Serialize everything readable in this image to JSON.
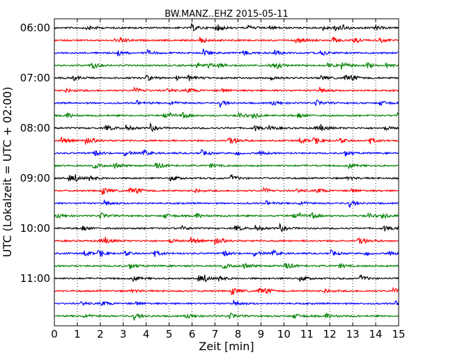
{
  "chart_data": {
    "type": "line",
    "title": "BW.MANZ..EHZ 2015-05-11",
    "xlabel": "Zeit  [min]",
    "ylabel": "UTC (Lokalzeit = UTC + 02:00)",
    "xlim": [
      0,
      15
    ],
    "x_ticks": [
      0,
      1,
      2,
      3,
      4,
      5,
      6,
      7,
      8,
      9,
      10,
      11,
      12,
      13,
      14,
      15
    ],
    "x_tick_labels": [
      "0",
      "1",
      "2",
      "3",
      "4",
      "5",
      "6",
      "7",
      "8",
      "9",
      "10",
      "11",
      "12",
      "13",
      "14",
      "15"
    ],
    "grid": "x-dotted",
    "trace_interval_minutes": 15,
    "y_tick_labels": [
      "06:00",
      "07:00",
      "08:00",
      "09:00",
      "10:00",
      "11:00"
    ],
    "color_cycle": [
      "#000000",
      "#ff0000",
      "#0000ff",
      "#008000"
    ],
    "series": [
      {
        "start": "06:00"
      },
      {
        "start": "06:15"
      },
      {
        "start": "06:30"
      },
      {
        "start": "06:45"
      },
      {
        "start": "07:00"
      },
      {
        "start": "07:15"
      },
      {
        "start": "07:30"
      },
      {
        "start": "07:45"
      },
      {
        "start": "08:00"
      },
      {
        "start": "08:15"
      },
      {
        "start": "08:30"
      },
      {
        "start": "08:45"
      },
      {
        "start": "09:00"
      },
      {
        "start": "09:15"
      },
      {
        "start": "09:30"
      },
      {
        "start": "09:45"
      },
      {
        "start": "10:00"
      },
      {
        "start": "10:15"
      },
      {
        "start": "10:30"
      },
      {
        "start": "10:45"
      },
      {
        "start": "11:00"
      },
      {
        "start": "11:15"
      },
      {
        "start": "11:30"
      },
      {
        "start": "11:45"
      }
    ]
  }
}
